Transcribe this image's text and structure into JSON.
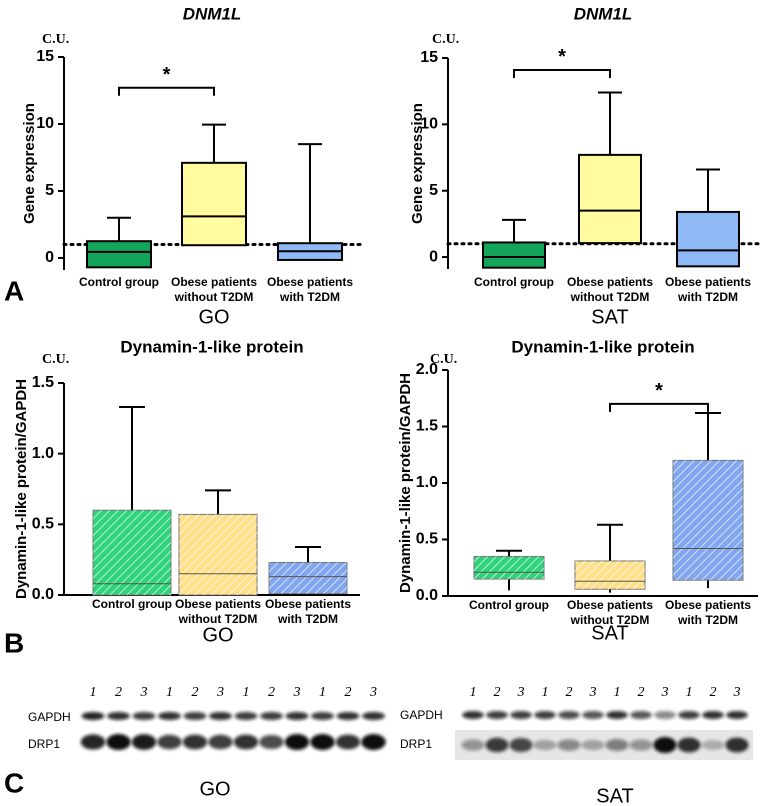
{
  "chart_data": [
    {
      "type": "box",
      "title": "DNM1L",
      "unit_label": "C.U.",
      "y_label": "Gene expression",
      "x_label": "GO",
      "categories": [
        [
          "Control group"
        ],
        [
          "Obese patients",
          "without T2DM"
        ],
        [
          "Obese patients",
          "with T2DM"
        ]
      ],
      "colors": [
        "#13a55a",
        "#fffb9e",
        "#8fb9f5"
      ],
      "hatch": false,
      "boxes": [
        {
          "min": -0.7,
          "q1": -0.7,
          "median": 0.45,
          "q3": 1.25,
          "max": 3.0
        },
        {
          "min": 0.9,
          "q1": 0.95,
          "median": 3.1,
          "q3": 7.1,
          "max": 9.95
        },
        {
          "min": -0.15,
          "q1": -0.15,
          "median": 0.5,
          "q3": 1.1,
          "max": 8.5
        }
      ],
      "reference_line": 1,
      "significance": {
        "from": 0,
        "to": 1,
        "y": 12.7,
        "label": "*"
      },
      "ylim": [
        -0.9,
        15
      ],
      "yticks": [
        0,
        5,
        10,
        15
      ]
    },
    {
      "type": "box",
      "title": "DNM1L",
      "unit_label": "C.U.",
      "y_label": "Gene expression",
      "x_label": "SAT",
      "categories": [
        [
          "Control group"
        ],
        [
          "Obese patients",
          "without T2DM"
        ],
        [
          "Obese patients",
          "with T2DM"
        ]
      ],
      "colors": [
        "#13a55a",
        "#fffb9e",
        "#8fb9f5"
      ],
      "hatch": false,
      "boxes": [
        {
          "min": -0.8,
          "q1": -0.8,
          "median": 0.0,
          "q3": 1.1,
          "max": 2.8
        },
        {
          "min": 1.05,
          "q1": 1.05,
          "median": 3.5,
          "q3": 7.7,
          "max": 12.4
        },
        {
          "min": -0.7,
          "q1": -0.7,
          "median": 0.5,
          "q3": 3.4,
          "max": 6.6
        }
      ],
      "reference_line": 1,
      "significance": {
        "from": 0,
        "to": 1,
        "y": 14.1,
        "label": "*"
      },
      "ylim": [
        -0.9,
        15
      ],
      "yticks": [
        0,
        5,
        10,
        15
      ]
    },
    {
      "type": "box",
      "title": "Dynamin-1-like protein",
      "unit_label": "C.U.",
      "y_label": "Dynamin-1-like protein/GAPDH",
      "x_label": "GO",
      "categories": [
        [
          "Control group"
        ],
        [
          "Obese patients",
          "without T2DM"
        ],
        [
          "Obese patients",
          "with T2DM"
        ]
      ],
      "colors": [
        "#2fd47a",
        "#ffe08a",
        "#7fa6ef"
      ],
      "hatch": true,
      "boxes": [
        {
          "min": 0,
          "q1": 0,
          "median": 0.08,
          "q3": 0.6,
          "max": 1.33
        },
        {
          "min": 0,
          "q1": 0,
          "median": 0.15,
          "q3": 0.57,
          "max": 0.74
        },
        {
          "min": 0.01,
          "q1": 0.01,
          "median": 0.13,
          "q3": 0.23,
          "max": 0.34
        }
      ],
      "ylim": [
        0,
        1.5
      ],
      "yticks": [
        {
          "value": 0,
          "label": "0.0"
        },
        {
          "value": 0.5,
          "label": "0.5"
        },
        {
          "value": 1,
          "label": "1.0"
        },
        {
          "value": 1.5,
          "label": "1.5"
        }
      ]
    },
    {
      "type": "box",
      "title": "Dynamin-1-like protein",
      "unit_label": "C.U.",
      "y_label": "Dynamin-1-like protein/GAPDH",
      "x_label": "SAT",
      "categories": [
        [
          "Control group"
        ],
        [
          "Obese patients",
          "without T2DM"
        ],
        [
          "Obese patients",
          "with T2DM"
        ]
      ],
      "colors": [
        "#2fd47a",
        "#ffe08a",
        "#7fa6ef"
      ],
      "hatch": true,
      "boxes": [
        {
          "min": 0.05,
          "q1": 0.15,
          "median": 0.21,
          "q3": 0.35,
          "max": 0.4
        },
        {
          "min": 0.03,
          "q1": 0.06,
          "median": 0.13,
          "q3": 0.31,
          "max": 0.63
        },
        {
          "min": 0.07,
          "q1": 0.14,
          "median": 0.42,
          "q3": 1.2,
          "max": 1.62
        }
      ],
      "significance": {
        "from": 1,
        "to": 2,
        "y": 1.7,
        "label": "*"
      },
      "ylim": [
        0,
        2
      ],
      "yticks": [
        {
          "value": 0,
          "label": "0.0"
        },
        {
          "value": 0.5,
          "label": "0.5"
        },
        {
          "value": 1,
          "label": "1.0"
        },
        {
          "value": 1.5,
          "label": "1.5"
        },
        {
          "value": 2,
          "label": "2.0"
        }
      ]
    }
  ],
  "panel_labels": [
    "A",
    "B",
    "C"
  ],
  "blots": [
    {
      "group_label": "GO",
      "rows": [
        "GAPDH",
        "DRP1"
      ],
      "lanes": [
        "1",
        "2",
        "3",
        "1",
        "2",
        "3",
        "1",
        "2",
        "3",
        "1",
        "2",
        "3"
      ]
    },
    {
      "group_label": "SAT",
      "rows": [
        "GAPDH",
        "DRP1"
      ],
      "lanes": [
        "1",
        "2",
        "3",
        "1",
        "2",
        "3",
        "1",
        "2",
        "3",
        "1",
        "2",
        "3"
      ]
    }
  ]
}
